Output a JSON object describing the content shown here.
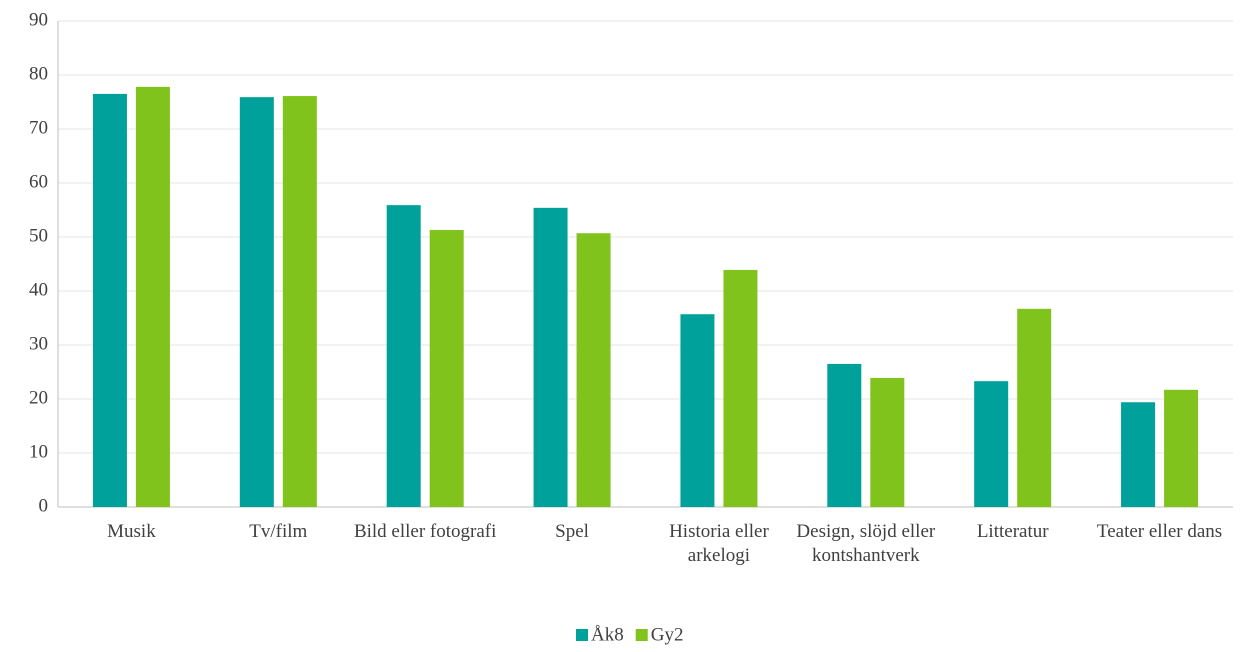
{
  "chart_data": {
    "type": "bar",
    "categories": [
      "Musik",
      "Tv/film",
      "Bild eller fotografi",
      "Spel",
      "Historia eller arkelogi",
      "Design, slöjd eller kontshantverk",
      "Litteratur",
      "Teater eller dans"
    ],
    "series": [
      {
        "name": "Åk8",
        "color": "#00a19a",
        "values": [
          76.5,
          75.9,
          55.9,
          55.4,
          35.7,
          26.5,
          23.3,
          19.4
        ]
      },
      {
        "name": "Gy2",
        "color": "#80c31c",
        "values": [
          77.8,
          76.1,
          51.3,
          50.7,
          43.9,
          23.9,
          36.7,
          21.7
        ]
      }
    ],
    "ylim": [
      0,
      90
    ],
    "yticks": [
      0,
      10,
      20,
      30,
      40,
      50,
      60,
      70,
      80,
      90
    ],
    "grid": true,
    "legend": "bottom"
  }
}
